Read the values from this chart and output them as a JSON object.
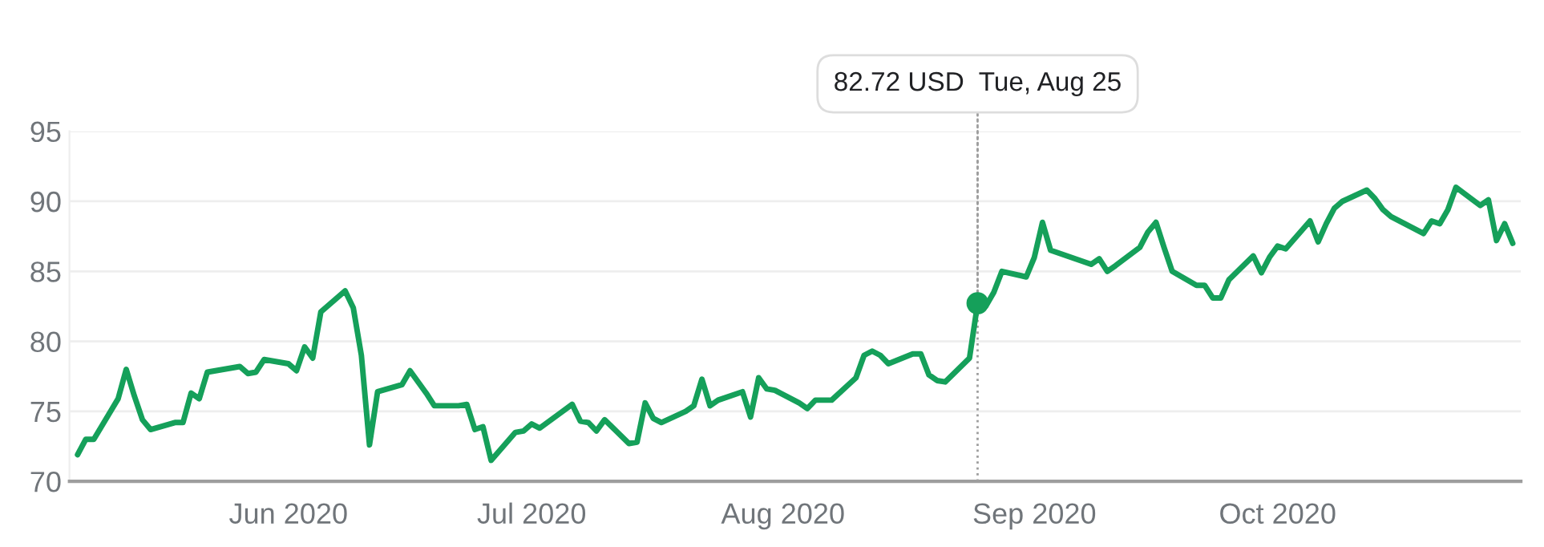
{
  "chart_data": {
    "type": "line",
    "x": [
      "2020-05-06",
      "2020-05-07",
      "2020-05-08",
      "2020-05-11",
      "2020-05-12",
      "2020-05-13",
      "2020-05-14",
      "2020-05-15",
      "2020-05-18",
      "2020-05-19",
      "2020-05-20",
      "2020-05-21",
      "2020-05-22",
      "2020-05-26",
      "2020-05-27",
      "2020-05-28",
      "2020-05-29",
      "2020-06-01",
      "2020-06-02",
      "2020-06-03",
      "2020-06-04",
      "2020-06-05",
      "2020-06-08",
      "2020-06-09",
      "2020-06-10",
      "2020-06-11",
      "2020-06-12",
      "2020-06-15",
      "2020-06-16",
      "2020-06-17",
      "2020-06-18",
      "2020-06-19",
      "2020-06-22",
      "2020-06-23",
      "2020-06-24",
      "2020-06-25",
      "2020-06-26",
      "2020-06-29",
      "2020-06-30",
      "2020-07-01",
      "2020-07-02",
      "2020-07-06",
      "2020-07-07",
      "2020-07-08",
      "2020-07-09",
      "2020-07-10",
      "2020-07-13",
      "2020-07-14",
      "2020-07-15",
      "2020-07-16",
      "2020-07-17",
      "2020-07-20",
      "2020-07-21",
      "2020-07-22",
      "2020-07-23",
      "2020-07-24",
      "2020-07-27",
      "2020-07-28",
      "2020-07-29",
      "2020-07-30",
      "2020-07-31",
      "2020-08-03",
      "2020-08-04",
      "2020-08-05",
      "2020-08-06",
      "2020-08-07",
      "2020-08-10",
      "2020-08-11",
      "2020-08-12",
      "2020-08-13",
      "2020-08-14",
      "2020-08-17",
      "2020-08-18",
      "2020-08-19",
      "2020-08-20",
      "2020-08-21",
      "2020-08-24",
      "2020-08-25",
      "2020-08-26",
      "2020-08-27",
      "2020-08-28",
      "2020-08-31",
      "2020-09-01",
      "2020-09-02",
      "2020-09-03",
      "2020-09-04",
      "2020-09-08",
      "2020-09-09",
      "2020-09-10",
      "2020-09-11",
      "2020-09-14",
      "2020-09-15",
      "2020-09-16",
      "2020-09-17",
      "2020-09-18",
      "2020-09-21",
      "2020-09-22",
      "2020-09-23",
      "2020-09-24",
      "2020-09-25",
      "2020-09-28",
      "2020-09-29",
      "2020-09-30",
      "2020-10-01",
      "2020-10-02",
      "2020-10-05",
      "2020-10-06",
      "2020-10-07",
      "2020-10-08",
      "2020-10-09",
      "2020-10-12",
      "2020-10-13",
      "2020-10-14",
      "2020-10-15",
      "2020-10-16",
      "2020-10-19",
      "2020-10-20",
      "2020-10-21",
      "2020-10-22",
      "2020-10-23",
      "2020-10-26",
      "2020-10-27",
      "2020-10-28",
      "2020-10-29",
      "2020-10-30"
    ],
    "series": [
      {
        "color": "#15a05a",
        "values": [
          71.9,
          73.0,
          73.0,
          75.9,
          78.0,
          76.1,
          74.4,
          73.7,
          74.2,
          74.2,
          76.3,
          75.9,
          77.8,
          78.2,
          77.7,
          77.8,
          78.7,
          78.4,
          77.9,
          79.6,
          78.8,
          82.1,
          83.6,
          82.4,
          79.0,
          72.6,
          76.4,
          76.9,
          77.9,
          77.1,
          76.3,
          75.4,
          75.4,
          75.5,
          73.7,
          73.9,
          71.5,
          73.5,
          73.6,
          74.1,
          73.8,
          75.5,
          74.3,
          74.2,
          73.6,
          74.4,
          72.7,
          72.8,
          75.6,
          74.5,
          74.2,
          75.0,
          75.4,
          77.3,
          75.4,
          75.8,
          76.4,
          74.6,
          77.4,
          76.6,
          76.5,
          75.6,
          75.2,
          75.8,
          75.8,
          75.8,
          77.4,
          79.0,
          79.3,
          79.0,
          78.4,
          79.1,
          79.1,
          77.6,
          77.2,
          77.1,
          78.8,
          82.7,
          82.5,
          83.5,
          85.0,
          84.6,
          86.0,
          88.5,
          86.5,
          86.3,
          85.5,
          85.9,
          85.0,
          85.4,
          86.7,
          87.8,
          88.5,
          86.7,
          85.0,
          84.0,
          84.0,
          83.1,
          83.1,
          84.4,
          86.1,
          84.9,
          86.0,
          86.8,
          86.6,
          88.6,
          87.1,
          88.4,
          89.5,
          90.0,
          90.8,
          90.2,
          89.4,
          88.9,
          88.6,
          87.7,
          88.6,
          88.4,
          89.4,
          91.0,
          89.7,
          90.1,
          87.2,
          88.4,
          87.0
        ]
      }
    ],
    "xlim": [
      "2020-05-05",
      "2020-10-31"
    ],
    "xticks": [
      {
        "value": "2020-06-01",
        "label": "Jun 2020"
      },
      {
        "value": "2020-07-01",
        "label": "Jul 2020"
      },
      {
        "value": "2020-08-01",
        "label": "Aug 2020"
      },
      {
        "value": "2020-09-01",
        "label": "Sep 2020"
      },
      {
        "value": "2020-10-01",
        "label": "Oct 2020"
      }
    ],
    "ylim": [
      70,
      95
    ],
    "yticks": [
      70,
      75,
      80,
      85,
      90,
      95
    ],
    "grid": "y",
    "legend": false,
    "marker": "none",
    "line_style": "solid",
    "ref_lines": [
      {
        "axis": "x",
        "value": "2020-08-25",
        "color": "#9e9e9e",
        "line_style": "dotted"
      }
    ],
    "annotations": [
      {
        "text": "82.72 USD  Tue, Aug 25",
        "x": "2020-08-25",
        "y": 82.72
      }
    ]
  }
}
